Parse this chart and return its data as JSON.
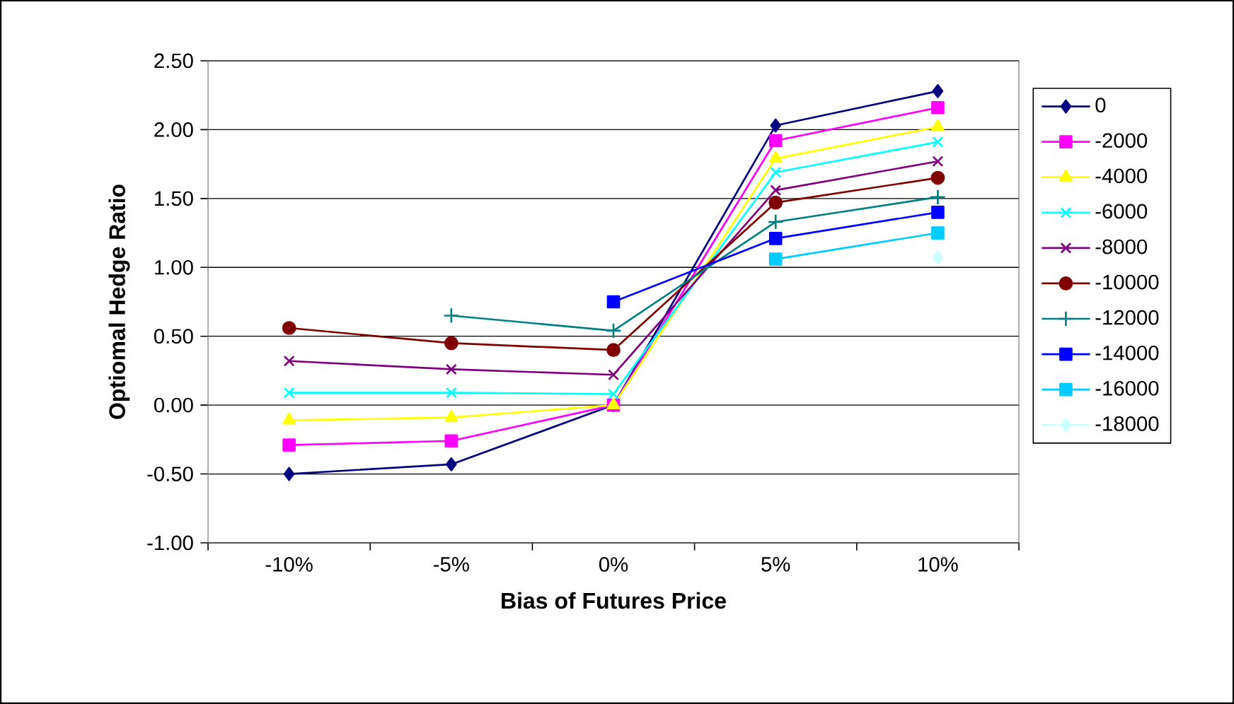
{
  "chart_data": {
    "type": "line",
    "xlabel": "Bias of Futures Price",
    "ylabel": "Optiomal Hedge Ratio",
    "categories": [
      "-10%",
      "-5%",
      "0%",
      "5%",
      "10%"
    ],
    "ylim": [
      -1,
      2.5
    ],
    "yticks": [
      {
        "value": -1,
        "label": "-1.00"
      },
      {
        "value": -0.5,
        "label": "-0.50"
      },
      {
        "value": 0,
        "label": "0.00"
      },
      {
        "value": 0.5,
        "label": "0.50"
      },
      {
        "value": 1,
        "label": "1.00"
      },
      {
        "value": 1.5,
        "label": "1.50"
      },
      {
        "value": 2,
        "label": "2.00"
      },
      {
        "value": 2.5,
        "label": "2.50"
      }
    ],
    "grid": "y",
    "legend": "right",
    "series": [
      {
        "name": "0",
        "color": "#000080",
        "marker": "diamond",
        "values": [
          -0.5,
          -0.43,
          0.0,
          2.03,
          2.28
        ]
      },
      {
        "name": "-2000",
        "color": "#ff00ff",
        "marker": "square",
        "values": [
          -0.29,
          -0.26,
          0.0,
          1.92,
          2.16
        ]
      },
      {
        "name": "-4000",
        "color": "#ffff00",
        "marker": "triangle",
        "values": [
          -0.11,
          -0.09,
          0.0,
          1.79,
          2.02
        ]
      },
      {
        "name": "-6000",
        "color": "#00ffff",
        "marker": "cross",
        "values": [
          0.09,
          0.09,
          0.08,
          1.69,
          1.91
        ]
      },
      {
        "name": "-8000",
        "color": "#800080",
        "marker": "cross",
        "values": [
          0.32,
          0.26,
          0.22,
          1.56,
          1.77
        ]
      },
      {
        "name": "-10000",
        "color": "#800000",
        "marker": "circle",
        "values": [
          0.56,
          0.45,
          0.4,
          1.47,
          1.65
        ]
      },
      {
        "name": "-12000",
        "color": "#008080",
        "marker": "plus",
        "values": [
          null,
          0.65,
          0.54,
          1.33,
          1.51
        ]
      },
      {
        "name": "-14000",
        "color": "#0000ff",
        "marker": "square",
        "values": [
          null,
          null,
          0.75,
          1.21,
          1.4
        ]
      },
      {
        "name": "-16000",
        "color": "#00ccff",
        "marker": "square",
        "values": [
          null,
          null,
          null,
          1.06,
          1.25
        ]
      },
      {
        "name": "-18000",
        "color": "#ccffff",
        "marker": "diamond",
        "values": [
          null,
          null,
          null,
          null,
          1.07
        ]
      }
    ]
  }
}
